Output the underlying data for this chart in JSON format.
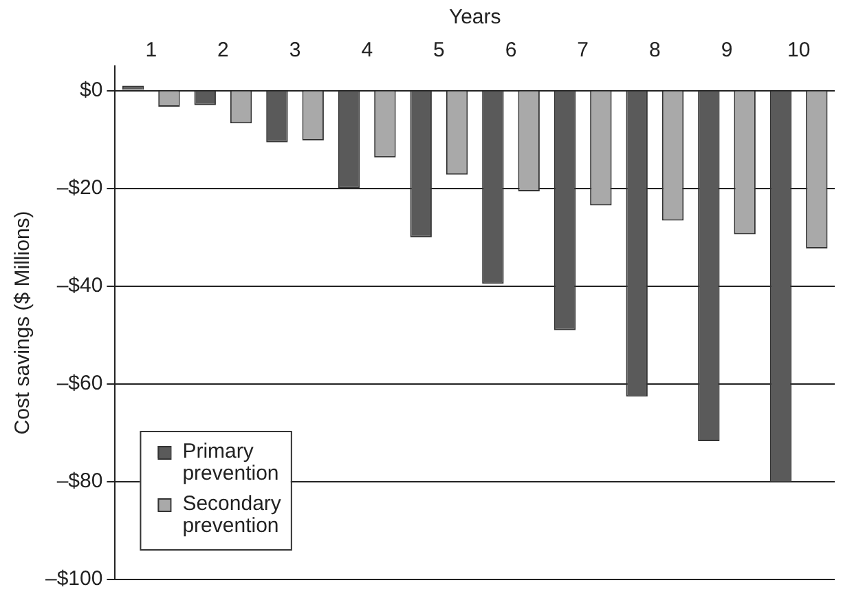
{
  "chart_data": {
    "type": "bar",
    "xlabel": "Years",
    "ylabel": "Cost savings ($ Millions)",
    "categories": [
      "1",
      "2",
      "3",
      "4",
      "5",
      "6",
      "7",
      "8",
      "9",
      "10"
    ],
    "series": [
      {
        "name": "Primary prevention",
        "color": "#5a5a5a",
        "values": [
          1,
          -3,
          -10.6,
          -20,
          -30,
          -39.5,
          -49,
          -62.6,
          -71.7,
          -80.2
        ]
      },
      {
        "name": "Secondary prevention",
        "color": "#a9a9a9",
        "values": [
          -3.3,
          -6.7,
          -10.2,
          -13.7,
          -17.2,
          -20.6,
          -23.5,
          -26.6,
          -29.4,
          -32.3
        ]
      }
    ],
    "ylim": [
      -100,
      5
    ],
    "yticks": [
      {
        "value": 0,
        "label": "$0"
      },
      {
        "value": -20,
        "label": "–$20"
      },
      {
        "value": -40,
        "label": "–$40"
      },
      {
        "value": -60,
        "label": "–$60"
      },
      {
        "value": -80,
        "label": "–$80"
      },
      {
        "value": -100,
        "label": "–$100"
      }
    ],
    "grid": "y",
    "legend": "bottom left"
  }
}
